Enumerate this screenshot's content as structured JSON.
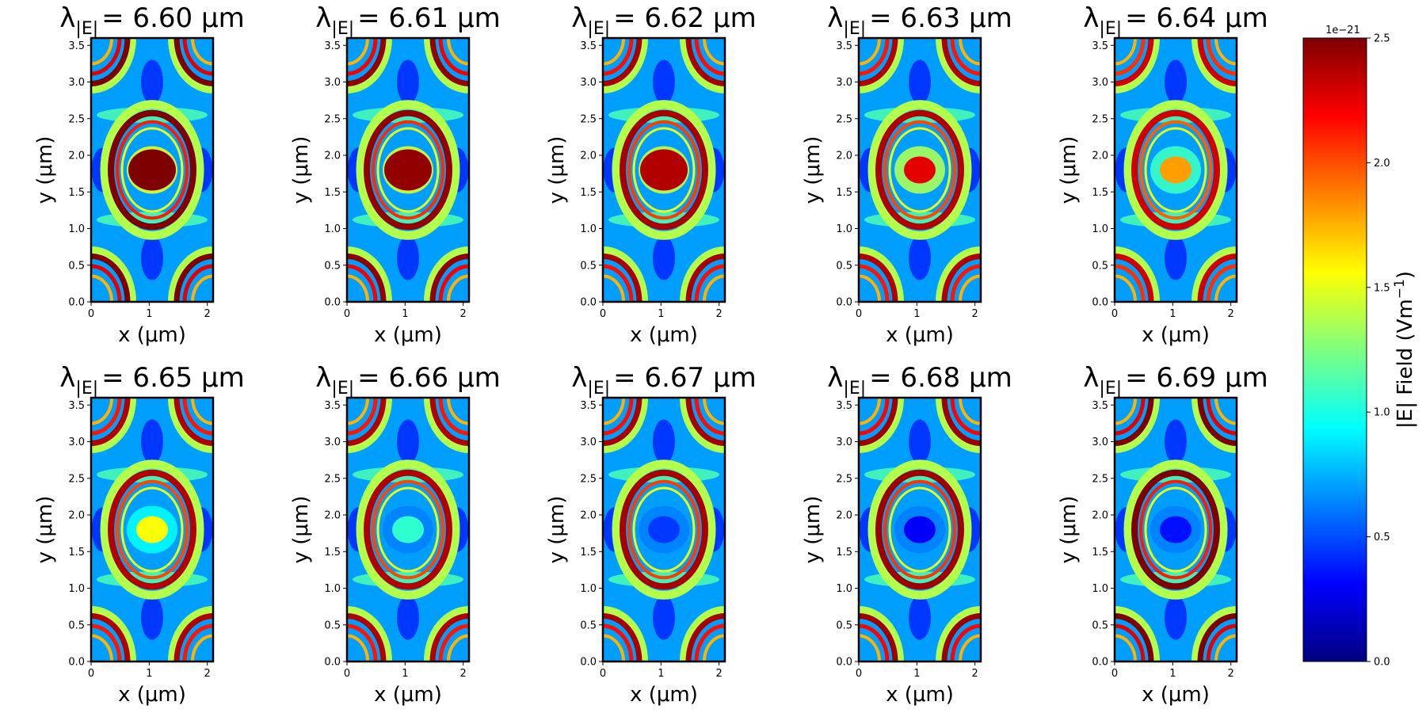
{
  "chart_data": {
    "type": "heatmap",
    "grid": false,
    "panels": [
      {
        "title_prefix": "λ",
        "title_subscript": "|E|",
        "title_value": "= 6.60 μm",
        "wavelength_um": 6.6,
        "center_max": true,
        "center_level": 1.0,
        "arc_level": 1.0
      },
      {
        "title_prefix": "λ",
        "title_subscript": "|E|",
        "title_value": "= 6.61 μm",
        "wavelength_um": 6.61,
        "center_max": true,
        "center_level": 0.98,
        "arc_level": 0.98
      },
      {
        "title_prefix": "λ",
        "title_subscript": "|E|",
        "title_value": "= 6.62 μm",
        "wavelength_um": 6.62,
        "center_max": true,
        "center_level": 0.95,
        "arc_level": 0.96
      },
      {
        "title_prefix": "λ",
        "title_subscript": "|E|",
        "title_value": "= 6.63 μm",
        "wavelength_um": 6.63,
        "center_max": false,
        "center_level": 0.9,
        "arc_level": 0.95
      },
      {
        "title_prefix": "λ",
        "title_subscript": "|E|",
        "title_value": "= 6.64 μm",
        "wavelength_um": 6.64,
        "center_max": false,
        "center_level": 0.72,
        "arc_level": 0.92
      },
      {
        "title_prefix": "λ",
        "title_subscript": "|E|",
        "title_value": "= 6.65 μm",
        "wavelength_um": 6.65,
        "center_max": false,
        "center_level": 0.62,
        "arc_level": 0.95
      },
      {
        "title_prefix": "λ",
        "title_subscript": "|E|",
        "title_value": "= 6.66 μm",
        "wavelength_um": 6.66,
        "center_max": false,
        "center_level": 0.42,
        "arc_level": 0.95
      },
      {
        "title_prefix": "λ",
        "title_subscript": "|E|",
        "title_value": "= 6.67 μm",
        "wavelength_um": 6.67,
        "center_max": false,
        "center_level": 0.18,
        "arc_level": 0.96
      },
      {
        "title_prefix": "λ",
        "title_subscript": "|E|",
        "title_value": "= 6.68 μm",
        "wavelength_um": 6.68,
        "center_max": false,
        "center_level": 0.12,
        "arc_level": 0.97
      },
      {
        "title_prefix": "λ",
        "title_subscript": "|E|",
        "title_value": "= 6.69 μm",
        "wavelength_um": 6.69,
        "center_max": false,
        "center_level": 0.14,
        "arc_level": 1.0
      }
    ],
    "xlabel": "x (μm)",
    "ylabel": "y (μm)",
    "xlim": [
      0,
      2.1
    ],
    "ylim": [
      0,
      3.6
    ],
    "xticks": [
      0,
      1,
      2
    ],
    "xtick_labels": [
      "0",
      "1",
      "2"
    ],
    "yticks": [
      0.0,
      0.5,
      1.0,
      1.5,
      2.0,
      2.5,
      3.0,
      3.5
    ],
    "ytick_labels": [
      "0.0",
      "0.5",
      "1.0",
      "1.5",
      "2.0",
      "2.5",
      "3.0",
      "3.5"
    ],
    "colorbar": {
      "label": "|E|  Field (Vm",
      "label_superscript": "−1",
      "label_close": ")",
      "offset_label": "1e−21",
      "range": [
        0,
        2.5
      ],
      "ticks": [
        0.0,
        0.5,
        1.0,
        1.5,
        2.0,
        2.5
      ],
      "tick_labels": [
        "0.0",
        "0.5",
        "1.0",
        "1.5",
        "2.0",
        "2.5"
      ],
      "colormap": "jet",
      "colormap_stops": [
        "#00007f",
        "#0000ff",
        "#007fff",
        "#00ffff",
        "#7fff7f",
        "#ffff00",
        "#ff7f00",
        "#ff0000",
        "#7f0000"
      ]
    }
  }
}
